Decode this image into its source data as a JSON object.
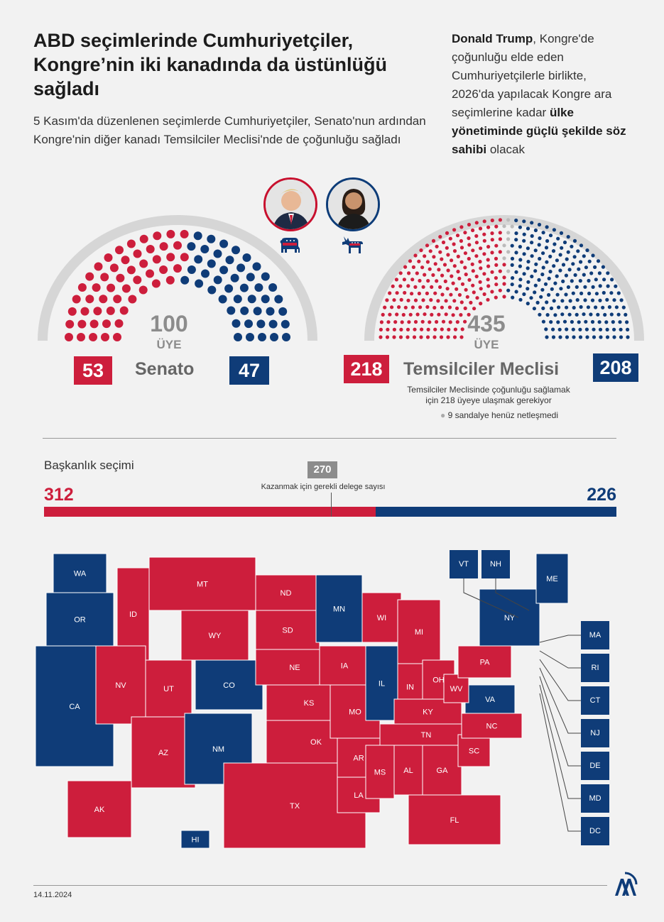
{
  "header": {
    "title": "ABD seçimlerinde Cumhuriyetçiler, Kongre’nin iki kanadında da üstünlüğü sağladı",
    "subtitle": "5 Kasım'da düzenlenen seçimlerde Cumhuriyetçiler, Senato'nun ardından Kongre'nin diğer kanadı Temsilciler Meclisi'nde de çoğunluğu sağladı",
    "side_note": {
      "p1": "Donald Trump",
      "p2": ", Kongre'de çoğunluğu elde eden Cumhuriyetçilerle birlikte, 2026'da yapılacak Kongre ara seçimlerine kadar ",
      "p3": "ülke yönetiminde güçlü şekilde söz sahibi",
      "p4": " olacak"
    }
  },
  "senate": {
    "label": "Senato",
    "total": "100",
    "unit": "ÜYE",
    "republican": "53",
    "democrat": "47",
    "rep_seats": 53,
    "dem_seats": 47
  },
  "house": {
    "label": "Temsilciler Meclisi",
    "total": "435",
    "unit": "ÜYE",
    "republican": "218",
    "democrat": "208",
    "rep_seats": 218,
    "dem_seats": 208,
    "undecided_seats": 9,
    "note": "Temsilciler Meclisinde çoğunluğu sağlamak için 218 üyeye ulaşmak gerekiyor",
    "undecided": "9 sandalye henüz netleşmedi"
  },
  "presidential": {
    "label": "Başkanlık seçimi",
    "republican": "312",
    "democrat": "226",
    "rep_value": 312,
    "dem_value": 226,
    "threshold": "270",
    "threshold_label": "Kazanmak için gerekli delege sayısı"
  },
  "colors": {
    "republican": "#cd1e3c",
    "democrat": "#0f3c78",
    "neutral": "#8c8c8c"
  },
  "map": {
    "states": [
      {
        "abbr": "WA",
        "party": "D"
      },
      {
        "abbr": "OR",
        "party": "D"
      },
      {
        "abbr": "CA",
        "party": "D"
      },
      {
        "abbr": "ID",
        "party": "R"
      },
      {
        "abbr": "NV",
        "party": "R"
      },
      {
        "abbr": "MT",
        "party": "R"
      },
      {
        "abbr": "WY",
        "party": "R"
      },
      {
        "abbr": "UT",
        "party": "R"
      },
      {
        "abbr": "AZ",
        "party": "R"
      },
      {
        "abbr": "CO",
        "party": "D"
      },
      {
        "abbr": "NM",
        "party": "D"
      },
      {
        "abbr": "ND",
        "party": "R"
      },
      {
        "abbr": "SD",
        "party": "R"
      },
      {
        "abbr": "NE",
        "party": "R"
      },
      {
        "abbr": "KS",
        "party": "R"
      },
      {
        "abbr": "OK",
        "party": "R"
      },
      {
        "abbr": "TX",
        "party": "R"
      },
      {
        "abbr": "MN",
        "party": "D"
      },
      {
        "abbr": "IA",
        "party": "R"
      },
      {
        "abbr": "MO",
        "party": "R"
      },
      {
        "abbr": "AR",
        "party": "R"
      },
      {
        "abbr": "LA",
        "party": "R"
      },
      {
        "abbr": "WI",
        "party": "R"
      },
      {
        "abbr": "IL",
        "party": "D"
      },
      {
        "abbr": "MI",
        "party": "R"
      },
      {
        "abbr": "IN",
        "party": "R"
      },
      {
        "abbr": "OH",
        "party": "R"
      },
      {
        "abbr": "KY",
        "party": "R"
      },
      {
        "abbr": "TN",
        "party": "R"
      },
      {
        "abbr": "MS",
        "party": "R"
      },
      {
        "abbr": "AL",
        "party": "R"
      },
      {
        "abbr": "GA",
        "party": "R"
      },
      {
        "abbr": "FL",
        "party": "R"
      },
      {
        "abbr": "SC",
        "party": "R"
      },
      {
        "abbr": "NC",
        "party": "R"
      },
      {
        "abbr": "VA",
        "party": "D"
      },
      {
        "abbr": "WV",
        "party": "R"
      },
      {
        "abbr": "PA",
        "party": "R"
      },
      {
        "abbr": "NY",
        "party": "D"
      },
      {
        "abbr": "ME",
        "party": "D"
      },
      {
        "abbr": "AK",
        "party": "R"
      },
      {
        "abbr": "HI",
        "party": "D"
      }
    ],
    "callouts_top": [
      "VT",
      "NH"
    ],
    "callouts_side": [
      "MA",
      "RI",
      "CT",
      "NJ",
      "DE",
      "MD",
      "DC"
    ]
  },
  "footer": {
    "date": "14.11.2024",
    "logo": "AA"
  },
  "icons": {
    "republican": "elephant-icon",
    "democrat": "donkey-icon"
  }
}
